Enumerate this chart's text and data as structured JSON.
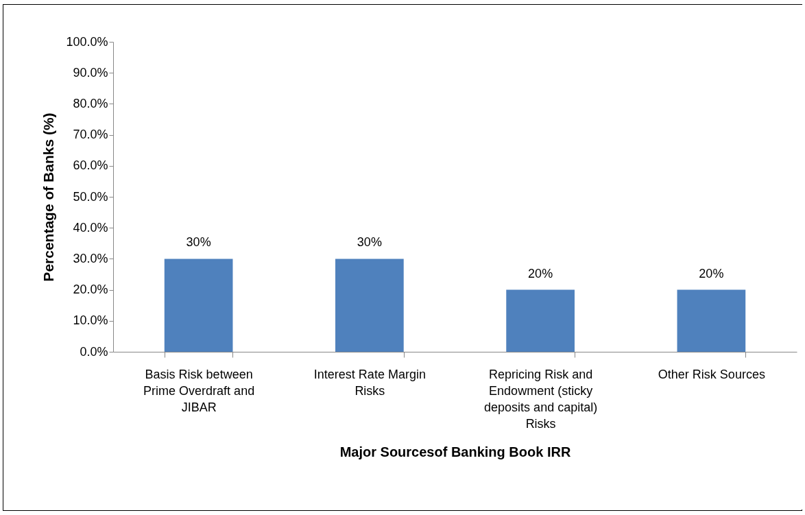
{
  "chart_data": {
    "type": "bar",
    "xlabel": "Major Sourcesof Banking Book IRR",
    "ylabel": "Percentage of Banks (%)",
    "categories": [
      "Basis Risk between Prime Overdraft and JIBAR",
      "Interest Rate Margin Risks",
      "Repricing Risk and Endowment (sticky deposits and capital) Risks",
      "Other Risk Sources"
    ],
    "values": [
      30,
      30,
      20,
      20
    ],
    "value_labels": [
      "30%",
      "30%",
      "20%",
      "20%"
    ],
    "color": "#4f81bd",
    "ylim": [
      0,
      100
    ],
    "yticks": [
      {
        "value": 0,
        "label": "0.0%"
      },
      {
        "value": 10,
        "label": "10.0%"
      },
      {
        "value": 20,
        "label": "20.0%"
      },
      {
        "value": 30,
        "label": "30.0%"
      },
      {
        "value": 40,
        "label": "40.0%"
      },
      {
        "value": 50,
        "label": "50.0%"
      },
      {
        "value": 60,
        "label": "60.0%"
      },
      {
        "value": 70,
        "label": "70.0%"
      },
      {
        "value": 80,
        "label": "80.0%"
      },
      {
        "value": 90,
        "label": "90.0%"
      },
      {
        "value": 100,
        "label": "100.0%"
      }
    ],
    "grid": false
  }
}
